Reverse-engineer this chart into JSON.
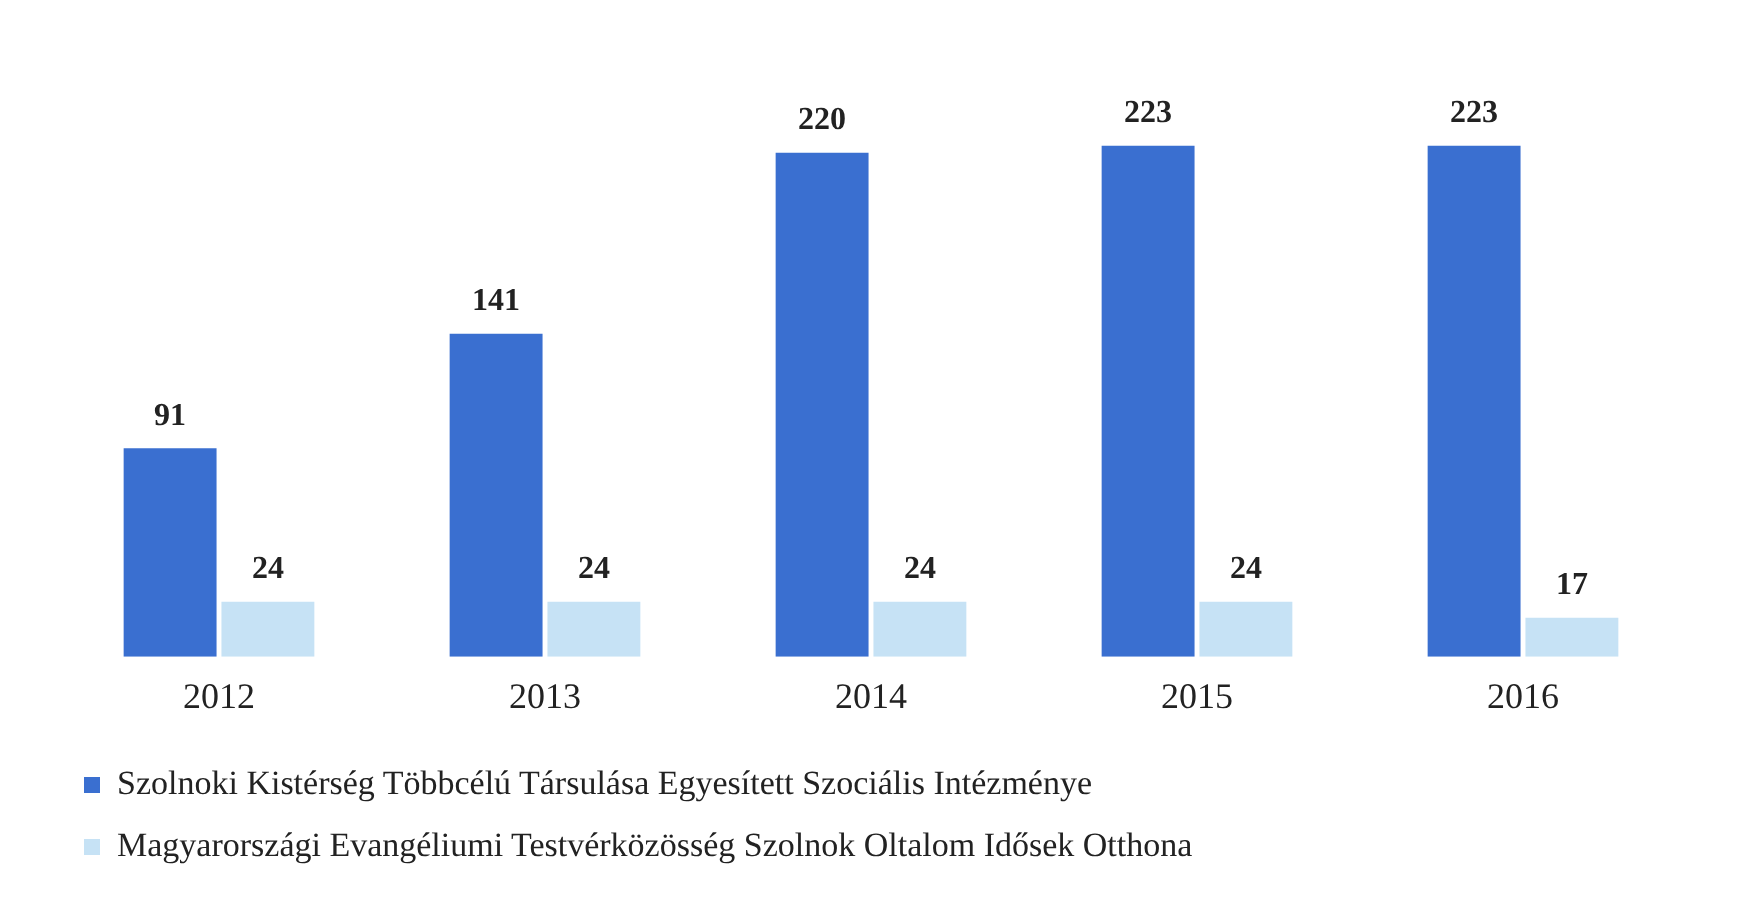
{
  "chart_data": {
    "type": "bar",
    "categories": [
      "2012",
      "2013",
      "2014",
      "2015",
      "2016"
    ],
    "series": [
      {
        "name": "Szolnoki Kistérség Többcélú Társulása Egyesített Szociális Intézménye",
        "color": "#3a6fd0",
        "values": [
          91,
          141,
          220,
          223,
          223
        ]
      },
      {
        "name": "Magyarországi Evangéliumi Testvérközösség Szolnok Oltalom Idősek Otthona",
        "color": "#c6e2f5",
        "values": [
          24,
          24,
          24,
          24,
          17
        ]
      }
    ],
    "data_labels": true,
    "grid": false,
    "legend": "bottom"
  }
}
